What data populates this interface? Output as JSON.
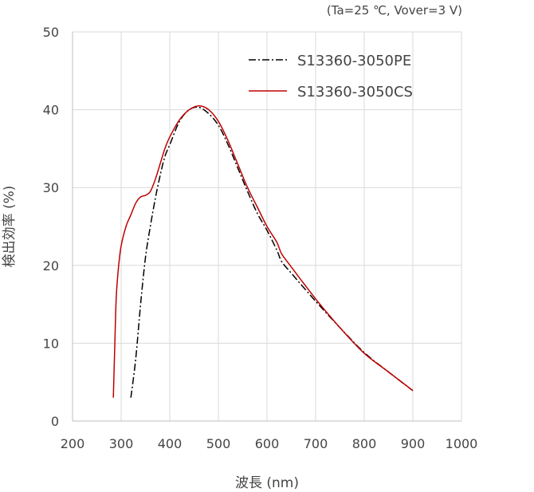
{
  "chart_data": {
    "type": "line",
    "conditions": "(Ta=25 ℃, Vover=3 V)",
    "xlabel": "波長 (nm)",
    "ylabel": "検出効率 (%)",
    "xlim": [
      200,
      1000
    ],
    "ylim": [
      0,
      50
    ],
    "x_ticks": [
      "200",
      "300",
      "400",
      "500",
      "600",
      "700",
      "800",
      "900",
      "1000"
    ],
    "y_ticks": [
      "0",
      "10",
      "20",
      "30",
      "40",
      "50"
    ],
    "grid": true,
    "legend_position": "top-right",
    "series": [
      {
        "name": "S13360-3050PE",
        "color": "#000000",
        "style": "dash-dot",
        "x": [
          320,
          330,
          340,
          350,
          360,
          370,
          380,
          390,
          400,
          420,
          440,
          460,
          480,
          500,
          520,
          540,
          560,
          580,
          600,
          620,
          630,
          650,
          700,
          750,
          800,
          850,
          900
        ],
        "y": [
          3,
          8,
          15,
          21,
          25,
          28.5,
          31.5,
          34,
          35.5,
          38.5,
          40,
          40.3,
          39.5,
          38,
          35.5,
          32.5,
          29.5,
          26.7,
          24.5,
          22,
          20.5,
          19,
          15.4,
          12,
          8.8,
          6.3,
          3.9
        ]
      },
      {
        "name": "S13360-3050CS",
        "color": "#c00000",
        "style": "solid",
        "x": [
          284,
          287,
          290,
          295,
          300,
          310,
          320,
          330,
          340,
          350,
          360,
          370,
          380,
          390,
          400,
          420,
          440,
          460,
          480,
          500,
          520,
          540,
          560,
          580,
          600,
          620,
          630,
          650,
          700,
          750,
          800,
          850,
          900
        ],
        "y": [
          3,
          10,
          16,
          20,
          22.5,
          25,
          26.5,
          28,
          28.8,
          29,
          29.5,
          31,
          33,
          35,
          36.5,
          38.7,
          40,
          40.5,
          40,
          38.5,
          36,
          33,
          30,
          27.5,
          25,
          23,
          21.5,
          19.8,
          15.7,
          12,
          8.7,
          6.3,
          3.9
        ]
      }
    ]
  }
}
